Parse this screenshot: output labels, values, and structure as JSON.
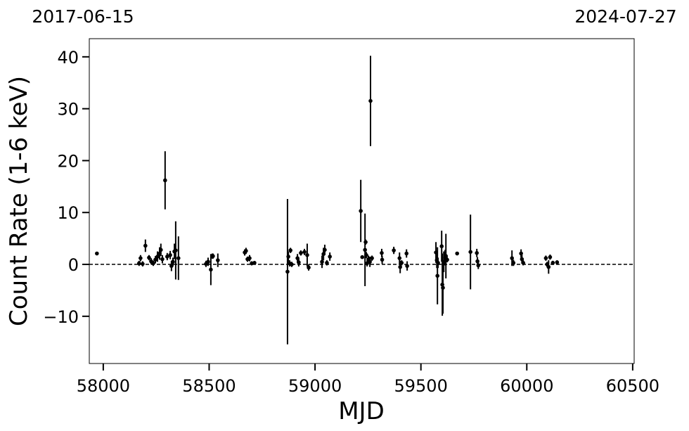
{
  "chart_data": {
    "type": "errorbar",
    "x_label": "MJD",
    "y_label": "Count Rate (1-6 keV)",
    "top_labels": [
      "2017-06-15",
      "2024-07-27"
    ],
    "xlim": [
      57934,
      60507
    ],
    "ylim": [
      -19.1,
      43.5
    ],
    "xticks": [
      58000,
      58500,
      59000,
      59500,
      60000,
      60500
    ],
    "yticks": [
      {
        "value": -10,
        "label": "−10"
      },
      0,
      10,
      20,
      30,
      40
    ],
    "hline": 0,
    "series": [
      {
        "color": "#000000",
        "x": [
          57970,
          58169,
          58176,
          58186,
          58199,
          58216,
          58226,
          58236,
          58246,
          58256,
          58266,
          58272,
          58279,
          58292,
          58302,
          58316,
          58322,
          58329,
          58336,
          58342,
          58355,
          58485,
          58495,
          58508,
          58515,
          58518,
          58541,
          58668,
          58674,
          58681,
          58691,
          58701,
          58714,
          58870,
          58874,
          58880,
          58884,
          58890,
          58917,
          58923,
          58933,
          58950,
          58963,
          58970,
          59033,
          59040,
          59046,
          59056,
          59070,
          59216,
          59223,
          59236,
          59239,
          59242,
          59246,
          59252,
          59259,
          59262,
          59269,
          59315,
          59317,
          59372,
          59399,
          59402,
          59409,
          59432,
          59435,
          59571,
          59575,
          59578,
          59581,
          59598,
          59601,
          59604,
          59608,
          59614,
          59618,
          59624,
          59671,
          59734,
          59764,
          59767,
          59771,
          59930,
          59937,
          59973,
          59977,
          59983,
          60090,
          60096,
          60103,
          60110,
          60123,
          60143
        ],
        "values": [
          2.1,
          0.2,
          1.2,
          0.1,
          3.6,
          1.3,
          0.6,
          0.2,
          0.9,
          1.5,
          2.1,
          2.8,
          1.0,
          16.2,
          1.5,
          1.8,
          -0.3,
          0.5,
          2.5,
          2.7,
          1.2,
          0.1,
          0.5,
          -1.0,
          1.6,
          1.6,
          0.8,
          2.3,
          2.6,
          1.0,
          1.2,
          0.2,
          0.3,
          -1.4,
          1.5,
          0.2,
          2.7,
          0.0,
          1.2,
          0.4,
          2.2,
          2.4,
          1.8,
          -0.6,
          0.5,
          2.0,
          2.8,
          0.3,
          1.5,
          10.3,
          1.4,
          2.8,
          4.3,
          1.8,
          0.2,
          1.0,
          0.5,
          31.5,
          1.2,
          2.2,
          0.9,
          2.7,
          1.2,
          -0.5,
          0.3,
          2.1,
          -0.3,
          2.3,
          0.8,
          -2.2,
          0.3,
          3.5,
          -3.9,
          -4.5,
          0.5,
          1.3,
          1.6,
          0.9,
          2.1,
          2.4,
          2.2,
          0.6,
          -0.2,
          1.2,
          0.3,
          2.1,
          1.0,
          0.3,
          1.2,
          0.0,
          -0.5,
          1.4,
          0.3,
          0.4
        ],
        "errors": [
          0.3,
          0.5,
          0.6,
          0.5,
          1.2,
          0.5,
          0.6,
          0.5,
          0.7,
          1.0,
          1.2,
          1.2,
          0.8,
          5.6,
          0.7,
          0.8,
          1.0,
          0.8,
          1.5,
          5.6,
          4.2,
          0.6,
          0.8,
          3.0,
          0.5,
          0.5,
          1.3,
          0.6,
          0.6,
          0.5,
          0.6,
          0.4,
          0.3,
          14.0,
          1.0,
          0.6,
          0.5,
          0.5,
          0.8,
          0.8,
          0.5,
          0.6,
          2.2,
          0.6,
          1.2,
          1.2,
          1.0,
          0.5,
          0.8,
          6.0,
          0.3,
          7.0,
          0.5,
          0.6,
          0.6,
          0.7,
          1.0,
          8.7,
          0.5,
          0.8,
          0.8,
          0.7,
          1.1,
          1.2,
          0.5,
          0.8,
          0.9,
          2.0,
          1.5,
          5.5,
          1.0,
          3.0,
          6.0,
          5.0,
          2.0,
          1.5,
          4.3,
          0.5,
          0.3,
          7.2,
          0.8,
          0.8,
          0.7,
          1.5,
          0.6,
          0.8,
          0.8,
          0.5,
          0.5,
          0.5,
          1.3,
          0.5,
          0.4,
          0.4
        ]
      }
    ]
  }
}
